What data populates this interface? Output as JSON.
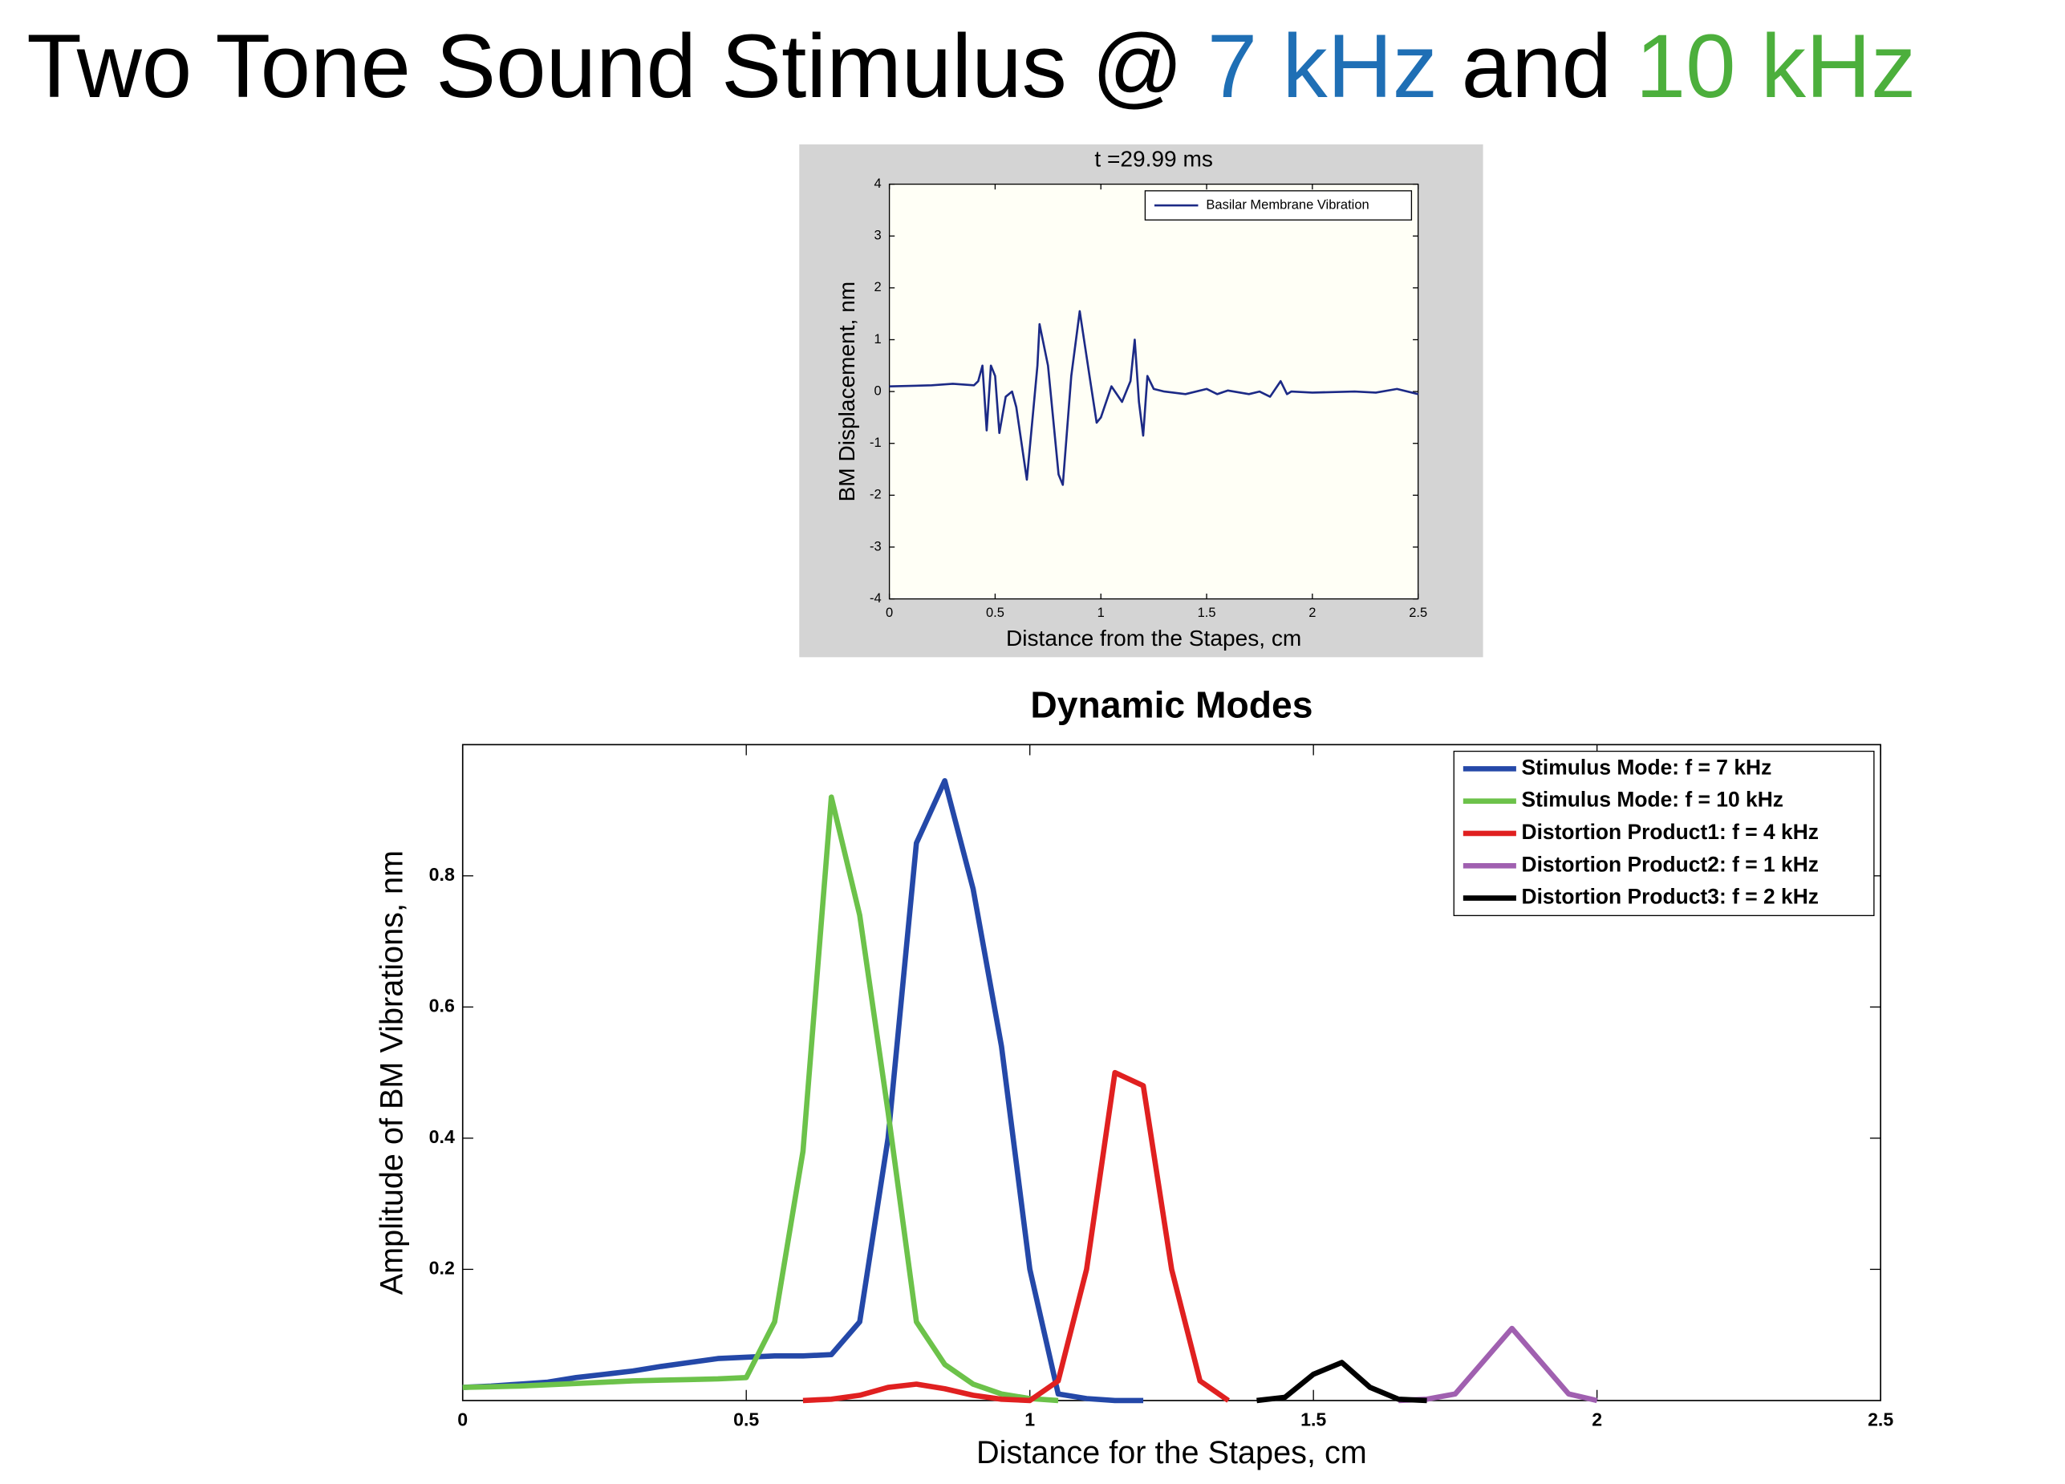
{
  "title_parts": [
    {
      "text": "Two Tone Sound Stimulus @",
      "color": "#000000"
    },
    {
      "text": "7 kHz",
      "color": "#1f6fb5"
    },
    {
      "text": "and",
      "color": "#000000"
    },
    {
      "text": "10 kHz",
      "color": "#4caf3c"
    }
  ],
  "chart_data": [
    {
      "type": "line",
      "title": "t =29.99 ms",
      "x_label": "Distance from the Stapes, cm",
      "y_label": "BM Displacement, nm",
      "xlim": [
        0,
        2.5
      ],
      "xticks": [
        0,
        0.5,
        1,
        1.5,
        2,
        2.5
      ],
      "ylim": [
        -4,
        4
      ],
      "yticks": [
        -4,
        -3,
        -2,
        -1,
        0,
        1,
        2,
        3,
        4
      ],
      "grid": false,
      "legend": "upper right",
      "series": [
        {
          "name": "Basilar Membrane Vibration",
          "color": "#1c2a86",
          "x": [
            0,
            0.2,
            0.3,
            0.4,
            0.42,
            0.44,
            0.46,
            0.48,
            0.5,
            0.52,
            0.55,
            0.58,
            0.6,
            0.65,
            0.7,
            0.71,
            0.75,
            0.8,
            0.82,
            0.86,
            0.9,
            0.95,
            0.98,
            1.0,
            1.05,
            1.1,
            1.14,
            1.16,
            1.18,
            1.2,
            1.22,
            1.25,
            1.3,
            1.4,
            1.5,
            1.55,
            1.6,
            1.7,
            1.75,
            1.8,
            1.85,
            1.88,
            1.9,
            2.0,
            2.2,
            2.3,
            2.4,
            2.5
          ],
          "values": [
            0.1,
            0.12,
            0.15,
            0.12,
            0.2,
            0.5,
            -0.75,
            0.5,
            0.3,
            -0.8,
            -0.1,
            0,
            -0.3,
            -1.7,
            0.5,
            1.3,
            0.5,
            -1.6,
            -1.8,
            0.3,
            1.55,
            0.2,
            -0.6,
            -0.5,
            0.1,
            -0.2,
            0.2,
            1.0,
            -0.2,
            -0.85,
            0.3,
            0.05,
            0,
            -0.05,
            0.05,
            -0.05,
            0.02,
            -0.05,
            0,
            -0.1,
            0.2,
            -0.05,
            0,
            -0.02,
            0,
            -0.02,
            0.05,
            -0.05
          ]
        }
      ]
    },
    {
      "type": "line",
      "title": "Dynamic Modes",
      "x_label": "Distance for the Stapes, cm",
      "y_label": "Amplitude of BM Vibrations, nm",
      "xlim": [
        0,
        2.5
      ],
      "xticks": [
        0,
        0.5,
        1,
        1.5,
        2,
        2.5
      ],
      "ylim": [
        0,
        1
      ],
      "yticks": [
        0.2,
        0.4,
        0.6,
        0.8
      ],
      "grid": false,
      "legend": "upper right",
      "x": [
        0,
        0.05,
        0.1,
        0.15,
        0.2,
        0.25,
        0.3,
        0.35,
        0.4,
        0.45,
        0.5,
        0.55,
        0.6,
        0.65,
        0.7,
        0.75,
        0.8,
        0.85,
        0.9,
        0.95,
        1.0,
        1.05,
        1.1,
        1.15,
        1.2,
        1.25,
        1.3,
        1.35,
        1.4,
        1.45,
        1.5,
        1.55,
        1.6,
        1.65,
        1.7,
        1.75,
        1.8,
        1.85,
        1.9,
        1.95,
        2.0,
        2.05,
        2.1,
        2.15,
        2.2,
        2.25,
        2.3,
        2.35,
        2.4,
        2.45,
        2.5
      ],
      "series": [
        {
          "name": "Stimulus Mode: f = 7 kHz",
          "color": "#2448a8",
          "values": [
            0.02,
            0.022,
            0.025,
            0.028,
            0.035,
            0.04,
            0.045,
            0.052,
            0.058,
            0.064,
            0.066,
            0.068,
            0.068,
            0.07,
            0.12,
            0.4,
            0.85,
            0.945,
            0.78,
            0.54,
            0.2,
            0.01,
            0.003,
            0,
            0,
            null,
            null,
            null,
            null,
            null,
            null,
            null,
            null,
            null,
            null,
            null,
            null,
            null,
            null,
            null,
            null,
            null,
            null,
            null,
            null,
            null,
            null,
            null,
            null,
            null,
            null
          ]
        },
        {
          "name": "Stimulus Mode: f = 10 kHz",
          "color": "#6cc24a",
          "values": [
            0.02,
            0.021,
            0.022,
            0.024,
            0.026,
            0.028,
            0.03,
            0.031,
            0.032,
            0.033,
            0.035,
            0.12,
            0.38,
            0.92,
            0.74,
            0.44,
            0.12,
            0.055,
            0.025,
            0.01,
            0.003,
            0,
            null,
            null,
            null,
            null,
            null,
            null,
            null,
            null,
            null,
            null,
            null,
            null,
            null,
            null,
            null,
            null,
            null,
            null,
            null,
            null,
            null,
            null,
            null,
            null,
            null,
            null,
            null,
            null,
            null
          ]
        },
        {
          "name": "Distortion Product1: f = 4 kHz",
          "color": "#e02020",
          "values": [
            null,
            null,
            null,
            null,
            null,
            null,
            null,
            null,
            null,
            null,
            null,
            null,
            0,
            0.002,
            0.008,
            0.02,
            0.025,
            0.018,
            0.008,
            0.002,
            0,
            0.03,
            0.2,
            0.5,
            0.48,
            0.2,
            0.03,
            0,
            null,
            null,
            null,
            null,
            null,
            null,
            null,
            null,
            null,
            null,
            null,
            null,
            null,
            null,
            null,
            null,
            null,
            null,
            null,
            null,
            null,
            null,
            null
          ]
        },
        {
          "name": "Distortion Product2: f = 1 kHz",
          "color": "#a060b0",
          "values": [
            null,
            null,
            null,
            null,
            null,
            null,
            null,
            null,
            null,
            null,
            null,
            null,
            null,
            null,
            null,
            null,
            null,
            null,
            null,
            null,
            null,
            null,
            null,
            null,
            null,
            null,
            null,
            null,
            null,
            null,
            null,
            null,
            null,
            0,
            0.002,
            0.01,
            0.06,
            0.11,
            0.06,
            0.01,
            0,
            null,
            null,
            null,
            null,
            null,
            null,
            null,
            null,
            null,
            null
          ]
        },
        {
          "name": "Distortion Product3: f = 2 kHz",
          "color": "#000000",
          "values": [
            null,
            null,
            null,
            null,
            null,
            null,
            null,
            null,
            null,
            null,
            null,
            null,
            null,
            null,
            null,
            null,
            null,
            null,
            null,
            null,
            null,
            null,
            null,
            null,
            null,
            null,
            null,
            null,
            0,
            0.005,
            0.04,
            0.058,
            0.02,
            0.002,
            0,
            null,
            null,
            null,
            null,
            null,
            null,
            null,
            null,
            null,
            null,
            null,
            null,
            null,
            null,
            null,
            null
          ]
        }
      ]
    }
  ]
}
